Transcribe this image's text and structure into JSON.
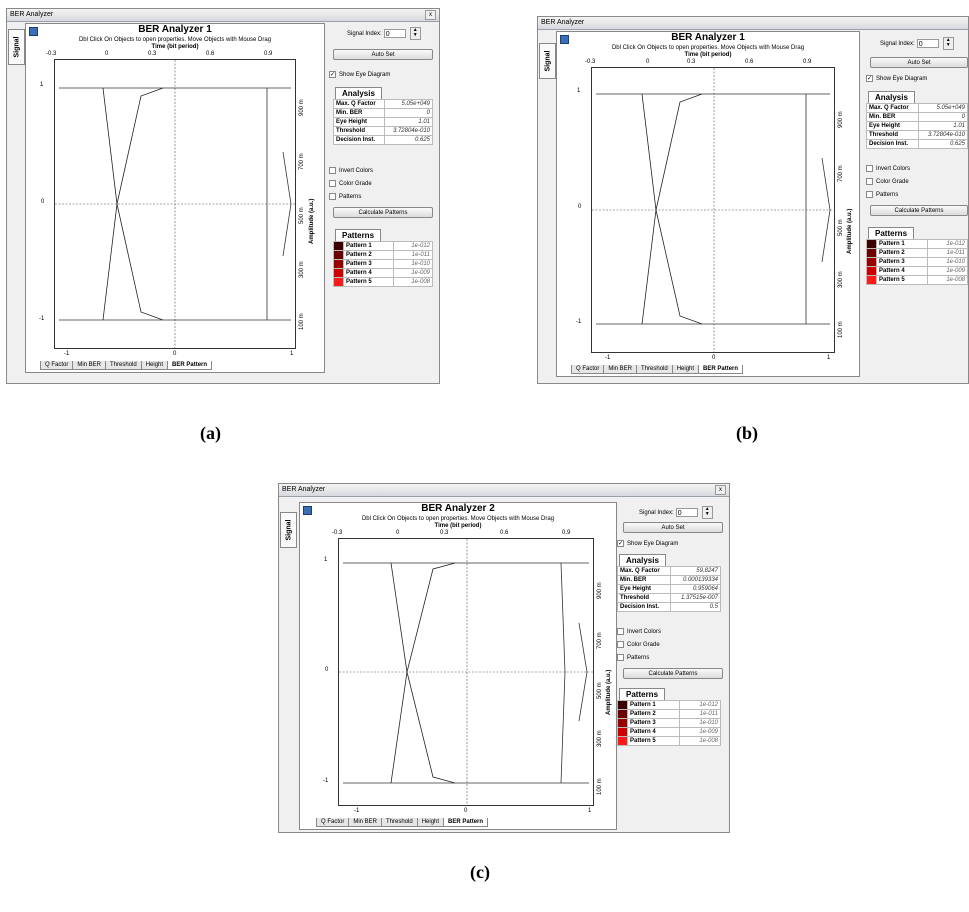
{
  "common": {
    "window_title": "BER Analyzer",
    "close_glyph": "x",
    "side_tab": "Signal",
    "dbl_click_note": "Dbl Click On Objects to open properties.  Move Objects with Mouse Drag",
    "x_axis_label": "Time (bit period)",
    "right_axis_label": "Amplitude (a.u.)",
    "top_ticks": [
      "-0.3",
      "0",
      "0.3",
      "0.6",
      "0.9"
    ],
    "bottom_ticks": [
      "-1",
      "0",
      "1"
    ],
    "left_ticks": [
      "1",
      "0",
      "-1"
    ],
    "right_ticks": [
      "900 m",
      "700 m",
      "500 m",
      "300 m",
      "100 m"
    ],
    "bottom_tabs": [
      "Q Factor",
      "Min BER",
      "Threshold",
      "Height",
      "BER Pattern"
    ],
    "signal_index_label": "Signal Index:",
    "signal_index_value": "0",
    "auto_set": "Auto Set",
    "show_eye": "Show Eye Diagram",
    "analysis_header": "Analysis",
    "invert_colors": "Invert Colors",
    "color_grade": "Color Grade",
    "patterns_check": "Patterns",
    "calc_patterns": "Calculate Patterns",
    "patterns_header": "Patterns",
    "patterns": [
      {
        "name": "Pattern 1",
        "value": "1e-012",
        "color": "#3a0000"
      },
      {
        "name": "Pattern 2",
        "value": "1e-011",
        "color": "#6a0000"
      },
      {
        "name": "Pattern 3",
        "value": "1e-010",
        "color": "#990000"
      },
      {
        "name": "Pattern 4",
        "value": "1e-009",
        "color": "#cc0000"
      },
      {
        "name": "Pattern 5",
        "value": "1e-008",
        "color": "#ff1a1a"
      }
    ],
    "checked_glyph": "✓"
  },
  "panels": {
    "a": {
      "caption": "(a)",
      "title": "BER Analyzer 1",
      "analysis": [
        {
          "key": "Max. Q Factor",
          "value": "5.05e+049"
        },
        {
          "key": "Min. BER",
          "value": "0"
        },
        {
          "key": "Eye Height",
          "value": "1.01"
        },
        {
          "key": "Threshold",
          "value": "3.72804e-010"
        },
        {
          "key": "Decision Inst.",
          "value": "0.625"
        }
      ]
    },
    "b": {
      "caption": "(b)",
      "title": "BER Analyzer 1",
      "analysis": [
        {
          "key": "Max. Q Factor",
          "value": "5.05e+049"
        },
        {
          "key": "Min. BER",
          "value": "0"
        },
        {
          "key": "Eye Height",
          "value": "1.01"
        },
        {
          "key": "Threshold",
          "value": "3.72804e-010"
        },
        {
          "key": "Decision Inst.",
          "value": "0.625"
        }
      ]
    },
    "c": {
      "caption": "(c)",
      "title": "BER Analyzer 2",
      "analysis": [
        {
          "key": "Max. Q Factor",
          "value": "59.8247"
        },
        {
          "key": "Min. BER",
          "value": "0.000139334"
        },
        {
          "key": "Eye Height",
          "value": "0.959064"
        },
        {
          "key": "Threshold",
          "value": "1.37515e-007"
        },
        {
          "key": "Decision Inst.",
          "value": "0.5"
        }
      ]
    }
  }
}
